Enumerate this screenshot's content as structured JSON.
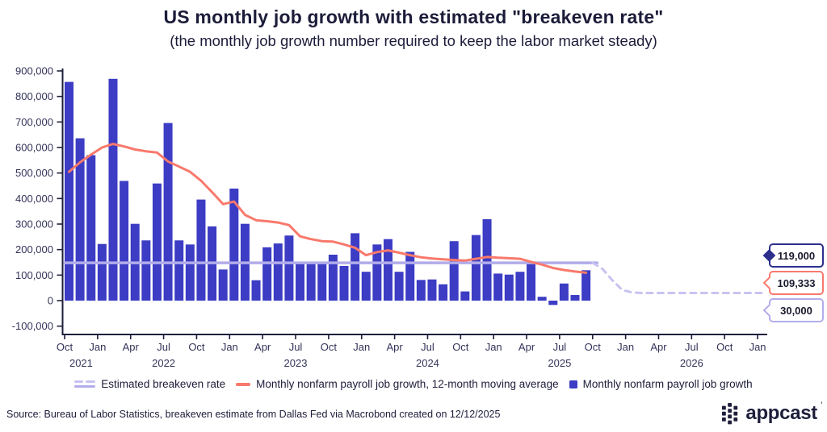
{
  "header": {
    "title": "US monthly job growth with estimated \"breakeven rate\"",
    "subtitle": "(the monthly job growth number required to keep the labor market steady)"
  },
  "chart_data": {
    "type": "bar",
    "title": "US monthly job growth with estimated \"breakeven rate\"",
    "subtitle": "(the monthly job growth number required to keep the labor market steady)",
    "x": [
      "Oct 2021",
      "Nov 2021",
      "Dec 2021",
      "Jan 2022",
      "Feb 2022",
      "Mar 2022",
      "Apr 2022",
      "May 2022",
      "Jun 2022",
      "Jul 2022",
      "Aug 2022",
      "Sep 2022",
      "Oct 2022",
      "Nov 2022",
      "Dec 2022",
      "Jan 2023",
      "Feb 2023",
      "Mar 2023",
      "Apr 2023",
      "May 2023",
      "Jun 2023",
      "Jul 2023",
      "Aug 2023",
      "Sep 2023",
      "Oct 2023",
      "Nov 2023",
      "Dec 2023",
      "Jan 2024",
      "Feb 2024",
      "Mar 2024",
      "Apr 2024",
      "May 2024",
      "Jun 2024",
      "Jul 2024",
      "Aug 2024",
      "Sep 2024",
      "Oct 2024",
      "Nov 2024",
      "Dec 2024",
      "Jan 2025",
      "Feb 2025",
      "Mar 2025",
      "Apr 2025",
      "May 2025",
      "Jun 2025",
      "Jul 2025",
      "Aug 2025",
      "Sep 2025"
    ],
    "series": [
      {
        "name": "Monthly nonfarm payroll job growth",
        "type": "bar",
        "color": "#3C3CC4",
        "values": [
          857000,
          636000,
          570000,
          222000,
          869000,
          469000,
          301000,
          236000,
          459000,
          696000,
          236000,
          220000,
          396000,
          291000,
          122000,
          439000,
          301000,
          80000,
          209000,
          224000,
          255000,
          145000,
          148000,
          152000,
          180000,
          136000,
          264000,
          113000,
          220000,
          241000,
          113000,
          191000,
          81000,
          83000,
          64000,
          233000,
          36000,
          257000,
          319000,
          106000,
          102000,
          113000,
          152000,
          15000,
          -17000,
          67000,
          22000,
          119000
        ]
      },
      {
        "name": "Monthly nonfarm payroll job growth, 12-month moving average",
        "type": "line",
        "color": "#F8796C",
        "values": [
          505000,
          542000,
          572000,
          600000,
          614000,
          604000,
          592000,
          585000,
          580000,
          545000,
          525000,
          505000,
          470000,
          425000,
          378000,
          388000,
          336000,
          315000,
          311000,
          306000,
          296000,
          252000,
          241000,
          233000,
          231000,
          220000,
          207000,
          178000,
          190000,
          197000,
          188000,
          178000,
          170000,
          165000,
          162000,
          159000,
          157000,
          164000,
          171000,
          168000,
          166000,
          164000,
          152000,
          141000,
          128000,
          120000,
          114000,
          109333
        ],
        "end_value_label": "109,333"
      },
      {
        "name": "Estimated breakeven rate",
        "type": "line",
        "color": "#B2ACEA",
        "dash_color": "#C7C3F1",
        "solid_value": 148000,
        "projection": {
          "start_month": "Oct 2025",
          "end_month": "Jan 2027",
          "start_value": 148000,
          "end_value": 30000,
          "style": "dashed"
        }
      }
    ],
    "y_axis": {
      "min": -100000,
      "max": 900000,
      "tick_step": 100000,
      "tick_labels": [
        "900,000",
        "800,000",
        "700,000",
        "600,000",
        "500,000",
        "400,000",
        "300,000",
        "200,000",
        "100,000",
        "0",
        "-100,000"
      ]
    },
    "x_axis": {
      "start_month": "Oct 2021",
      "tick_every_months": 3,
      "tick_labels": [
        "Oct",
        "Jan",
        "Apr",
        "Jul",
        "Oct",
        "Jan",
        "Apr",
        "Jul",
        "Oct",
        "Jan",
        "Apr",
        "Jul",
        "Oct",
        "Jan",
        "Apr",
        "Jul",
        "Oct",
        "Jan",
        "Apr",
        "Jul",
        "Oct",
        "Jan"
      ],
      "year_labels": [
        {
          "label": "2021",
          "month_index": 1.5
        },
        {
          "label": "2022",
          "month_index": 9
        },
        {
          "label": "2023",
          "month_index": 21
        },
        {
          "label": "2024",
          "month_index": 33
        },
        {
          "label": "2025",
          "month_index": 45
        },
        {
          "label": "2026",
          "month_index": 57
        }
      ]
    },
    "colors": {
      "axis": "#1E1E3C",
      "tick_text": "#33335A"
    },
    "grid": "off",
    "legend_position": "bottom"
  },
  "legend": {
    "items": [
      {
        "label": "Estimated breakeven rate",
        "marker": "double-dash-purple"
      },
      {
        "label": "Monthly nonfarm payroll job growth, 12-month moving average",
        "marker": "red-line"
      },
      {
        "label": "Monthly nonfarm payroll job growth",
        "marker": "blue-square"
      }
    ]
  },
  "callouts": [
    {
      "value": "119,000",
      "color": "#2D2F8C",
      "points_to": "latest monthly job growth bar"
    },
    {
      "value": "109,333",
      "color": "#F8796C",
      "points_to": "12-month moving average end"
    },
    {
      "value": "30,000",
      "color": "#B2ACEA",
      "points_to": "breakeven rate projection end"
    }
  ],
  "footer": {
    "source": "Source: Bureau of Labor Statistics, breakeven estimate from Dallas Fed via Macrobond created on 12/12/2025",
    "logo_text": "appcast"
  }
}
